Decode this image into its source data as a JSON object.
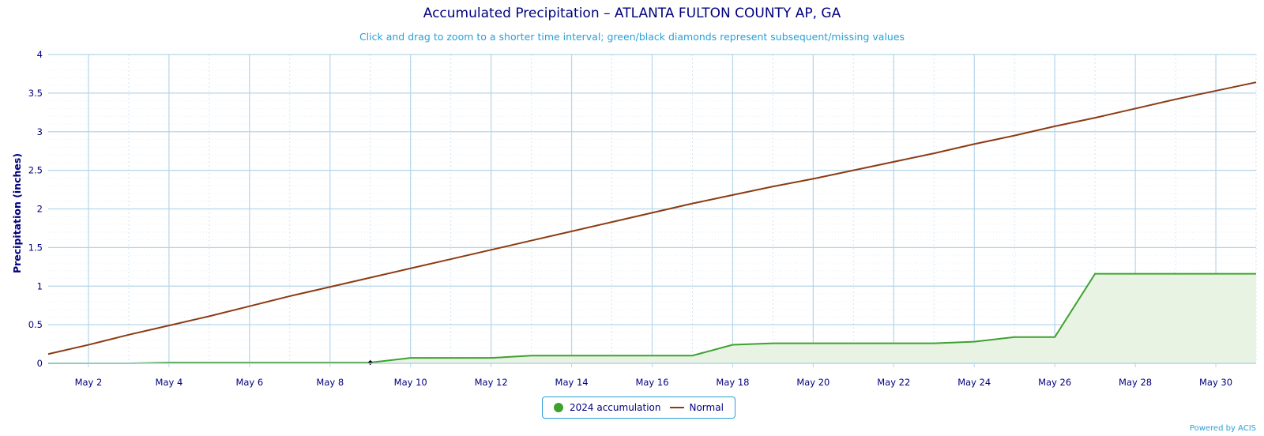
{
  "title": "Accumulated Precipitation – ATLANTA FULTON COUNTY AP, GA",
  "subtitle": "Click and drag to zoom to a shorter time interval; green/black diamonds represent subsequent/missing values",
  "credit": "Powered by ACIS",
  "legend": {
    "accum_label": "2024 accumulation",
    "normal_label": "Normal"
  },
  "colors": {
    "accum": "#3ea12e",
    "accum_fill": "#e8f3e3",
    "normal": "#8b3b13",
    "grid": "#b5d5ea",
    "axis_text": "#000080"
  },
  "chart_data": {
    "type": "line",
    "title": "Accumulated Precipitation – ATLANTA FULTON COUNTY AP, GA",
    "ylabel": "Precipitation (inches)",
    "xlabel": "",
    "ylim": [
      0,
      4
    ],
    "xlim": [
      1,
      31
    ],
    "yticks": [
      "0",
      "0.5",
      "1",
      "1.5",
      "2",
      "2.5",
      "3",
      "3.5",
      "4"
    ],
    "xticks": [
      {
        "day": 2,
        "label": "May 2"
      },
      {
        "day": 4,
        "label": "May 4"
      },
      {
        "day": 6,
        "label": "May 6"
      },
      {
        "day": 8,
        "label": "May 8"
      },
      {
        "day": 10,
        "label": "May 10"
      },
      {
        "day": 12,
        "label": "May 12"
      },
      {
        "day": 14,
        "label": "May 14"
      },
      {
        "day": 16,
        "label": "May 16"
      },
      {
        "day": 18,
        "label": "May 18"
      },
      {
        "day": 20,
        "label": "May 20"
      },
      {
        "day": 22,
        "label": "May 22"
      },
      {
        "day": 24,
        "label": "May 24"
      },
      {
        "day": 26,
        "label": "May 26"
      },
      {
        "day": 28,
        "label": "May 28"
      },
      {
        "day": 30,
        "label": "May 30"
      }
    ],
    "grid": true,
    "legend_position": "bottom-center",
    "series": [
      {
        "name": "2024 accumulation",
        "x": [
          1,
          2,
          3,
          4,
          5,
          6,
          7,
          8,
          9,
          10,
          11,
          12,
          13,
          14,
          15,
          16,
          17,
          18,
          19,
          20,
          21,
          22,
          23,
          24,
          25,
          26,
          27,
          28,
          29,
          30,
          31
        ],
        "y": [
          0,
          0,
          0,
          0.01,
          0.01,
          0.01,
          0.01,
          0.01,
          0.01,
          0.07,
          0.07,
          0.07,
          0.1,
          0.1,
          0.1,
          0.1,
          0.1,
          0.24,
          0.26,
          0.26,
          0.26,
          0.26,
          0.26,
          0.28,
          0.34,
          0.34,
          1.16,
          1.16,
          1.16,
          1.16,
          1.16
        ]
      },
      {
        "name": "Normal",
        "x": [
          1,
          2,
          3,
          4,
          5,
          6,
          7,
          8,
          9,
          10,
          11,
          12,
          13,
          14,
          15,
          16,
          17,
          18,
          19,
          20,
          21,
          22,
          23,
          24,
          25,
          26,
          27,
          28,
          29,
          30,
          31
        ],
        "y": [
          0.12,
          0.24,
          0.37,
          0.49,
          0.61,
          0.74,
          0.87,
          0.99,
          1.11,
          1.23,
          1.35,
          1.47,
          1.59,
          1.71,
          1.83,
          1.95,
          2.07,
          2.18,
          2.29,
          2.39,
          2.5,
          2.61,
          2.72,
          2.84,
          2.95,
          3.07,
          3.18,
          3.3,
          3.42,
          3.53,
          3.64
        ]
      }
    ],
    "missing_markers": [
      {
        "x": 9,
        "y": 0.01
      }
    ]
  }
}
